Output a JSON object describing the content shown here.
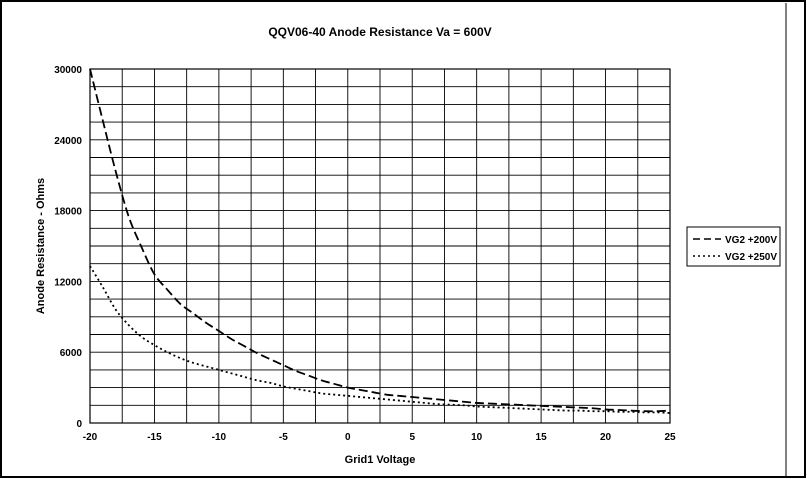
{
  "chart_data": {
    "type": "line",
    "title": "QQV06-40 Anode Resistance Va = 600V",
    "xlabel": "Grid1 Voltage",
    "ylabel": "Anode Resistance - Ohms",
    "xlim": [
      -20,
      25
    ],
    "ylim": [
      0,
      30000
    ],
    "x_ticks": [
      -20,
      -15,
      -10,
      -5,
      0,
      5,
      10,
      15,
      20,
      25
    ],
    "x_tick_labels": [
      "-20",
      "-15",
      "-10",
      "-5",
      "0",
      "5",
      "10",
      "15",
      "20",
      "25"
    ],
    "y_ticks": [
      0,
      6000,
      12000,
      18000,
      24000,
      30000
    ],
    "y_tick_labels": [
      "0",
      "6000",
      "12000",
      "18000",
      "24000",
      "30000"
    ],
    "x_grid_step": 2.5,
    "y_grid_step": 1500,
    "grid": true,
    "legend_position": "right",
    "series": [
      {
        "name": "VG2 +200V",
        "style": "dashed",
        "x": [
          -20,
          -19,
          -18,
          -17,
          -16,
          -15,
          -14,
          -13,
          -12,
          -11,
          -10,
          -9,
          -8,
          -7,
          -6,
          -5,
          -4,
          -3,
          -2,
          -1,
          0,
          1,
          2,
          3,
          4,
          5,
          6,
          7,
          8,
          9,
          10,
          11,
          12,
          13,
          14,
          15,
          16,
          17,
          18,
          19,
          20,
          21,
          22,
          23,
          24,
          25
        ],
        "values": [
          30000,
          25600,
          21300,
          17500,
          14900,
          12600,
          11300,
          10100,
          9300,
          8500,
          7800,
          7100,
          6500,
          5900,
          5400,
          4900,
          4400,
          4000,
          3600,
          3300,
          3000,
          2800,
          2600,
          2400,
          2300,
          2200,
          2100,
          2000,
          1900,
          1800,
          1700,
          1650,
          1600,
          1550,
          1500,
          1450,
          1400,
          1350,
          1300,
          1250,
          1150,
          1100,
          1050,
          1000,
          1000,
          1050
        ]
      },
      {
        "name": "VG2 +250V",
        "style": "dotted",
        "x": [
          -20,
          -19,
          -18,
          -17,
          -16,
          -15,
          -14,
          -13,
          -12,
          -11,
          -10,
          -9,
          -8,
          -7,
          -6,
          -5,
          -4,
          -3,
          -2,
          -1,
          0,
          1,
          2,
          3,
          4,
          5,
          6,
          7,
          8,
          9,
          10,
          11,
          12,
          13,
          14,
          15,
          16,
          17,
          18,
          19,
          20,
          21,
          22,
          23,
          24,
          25
        ],
        "values": [
          13300,
          11500,
          9600,
          8300,
          7300,
          6600,
          6000,
          5500,
          5100,
          4800,
          4500,
          4200,
          3900,
          3600,
          3400,
          3100,
          2900,
          2700,
          2500,
          2400,
          2300,
          2200,
          2100,
          2000,
          1900,
          1800,
          1700,
          1600,
          1550,
          1500,
          1400,
          1350,
          1300,
          1250,
          1200,
          1150,
          1100,
          1050,
          1050,
          1000,
          1000,
          950,
          950,
          900,
          900,
          850
        ]
      }
    ]
  }
}
